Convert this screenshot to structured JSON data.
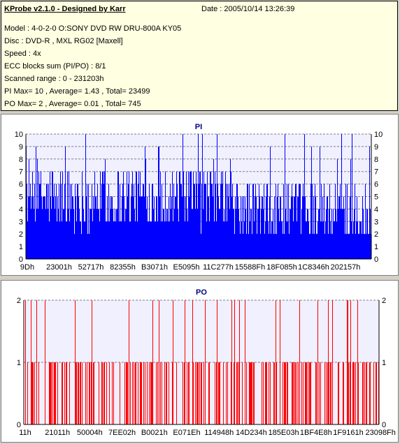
{
  "info": {
    "title": "KProbe v2.1.0 - Designed by Karr",
    "date": "Date : 2005/10/14 13:26:39",
    "lines": [
      "Model : 4-0-2-0 O:SONY    DVD RW DRU-800A  KY05",
      "Disc : DVD-R , MXL RG02 [Maxell]",
      "Speed : 4x",
      "ECC blocks sum (PI/PO) : 8/1",
      "Scanned range : 0 - 231203h",
      "PI Max= 10 , Average= 1.43 , Total= 23499",
      "PO Max= 2 , Average= 0.01 , Total= 745"
    ]
  },
  "chart_data": [
    {
      "type": "bar",
      "title": "PI",
      "ylim": [
        0,
        10
      ],
      "yticks": [
        0,
        1,
        2,
        3,
        4,
        5,
        6,
        7,
        8,
        9,
        10
      ],
      "xtick_labels": [
        "9Dh",
        "23001h",
        "52717h",
        "82355h",
        "B3071h",
        "E5095h",
        "11C277h",
        "15588Fh",
        "18F085h",
        "1C8346h",
        "202157h"
      ],
      "color": "#0000ff",
      "grid": true,
      "value_profile": {
        "typical_min": 3,
        "typical_max": 7,
        "max": 10,
        "average": 1.43
      }
    },
    {
      "type": "bar",
      "title": "PO",
      "ylim": [
        0,
        2
      ],
      "yticks": [
        0,
        1,
        2
      ],
      "xtick_labels": [
        "11h",
        "21011h",
        "50004h",
        "7EE02h",
        "B0021h",
        "E071Eh",
        "114948h",
        "14D234h",
        "185E03h",
        "1BF4E8h",
        "1F9161h",
        "23098Fh"
      ],
      "color": "#ff0000",
      "grid": true,
      "value_profile": {
        "typical_min": 0,
        "typical_max": 2,
        "max": 2,
        "average": 0.01
      }
    }
  ]
}
